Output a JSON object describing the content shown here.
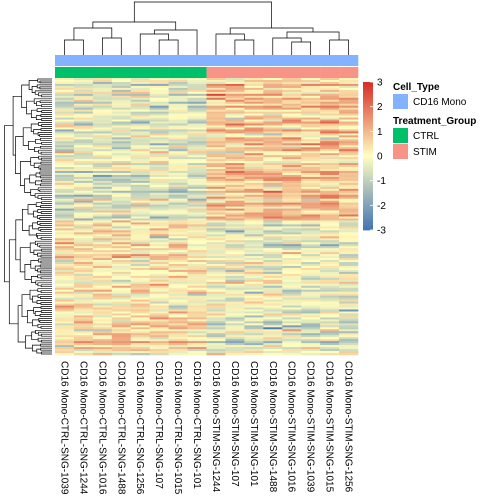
{
  "chart_data": {
    "type": "heatmap",
    "columns": [
      "CD16 Mono-CTRL-SNG-1039",
      "CD16 Mono-CTRL-SNG-1244",
      "CD16 Mono-CTRL-SNG-1016",
      "CD16 Mono-CTRL-SNG-1488",
      "CD16 Mono-CTRL-SNG-1256",
      "CD16 Mono-CTRL-SNG-107",
      "CD16 Mono-CTRL-SNG-1015",
      "CD16 Mono-CTRL-SNG-101",
      "CD16 Mono-STIM-SNG-1244",
      "CD16 Mono-STIM-SNG-107",
      "CD16 Mono-STIM-SNG-101",
      "CD16 Mono-STIM-SNG-1488",
      "CD16 Mono-STIM-SNG-1016",
      "CD16 Mono-STIM-SNG-1039",
      "CD16 Mono-STIM-SNG-1015",
      "CD16 Mono-STIM-SNG-1256"
    ],
    "cell_type": [
      "CD16 Mono",
      "CD16 Mono",
      "CD16 Mono",
      "CD16 Mono",
      "CD16 Mono",
      "CD16 Mono",
      "CD16 Mono",
      "CD16 Mono",
      "CD16 Mono",
      "CD16 Mono",
      "CD16 Mono",
      "CD16 Mono",
      "CD16 Mono",
      "CD16 Mono",
      "CD16 Mono",
      "CD16 Mono"
    ],
    "treatment_group": [
      "CTRL",
      "CTRL",
      "CTRL",
      "CTRL",
      "CTRL",
      "CTRL",
      "CTRL",
      "CTRL",
      "STIM",
      "STIM",
      "STIM",
      "STIM",
      "STIM",
      "STIM",
      "STIM",
      "STIM"
    ],
    "row_count": 140,
    "row_pattern": {
      "ctrl_mean_top": -0.4,
      "stim_mean_top": 0.7,
      "ctrl_mean_bottom": 0.3,
      "stim_mean_bottom": -0.3
    },
    "color_scale": {
      "range": [
        -3,
        3
      ],
      "ticks": [
        "3",
        "2",
        "1",
        "0",
        "-1",
        "-2",
        "-3"
      ],
      "tick_values": [
        3,
        2,
        1,
        0,
        -1,
        -2,
        -3
      ],
      "low_color": "#4575b4",
      "mid_color": "#ffffbf",
      "high_color": "#d73027"
    },
    "legend": {
      "placement": "right",
      "groups": [
        {
          "title": "Cell_Type",
          "items": [
            {
              "label": "CD16 Mono",
              "color": "#83b2ff"
            }
          ]
        },
        {
          "title": "Treatment_Group",
          "items": [
            {
              "label": "CTRL",
              "color": "#00c16a"
            },
            {
              "label": "STIM",
              "color": "#f89487"
            }
          ]
        }
      ]
    },
    "dendrogram": {
      "rows": true,
      "columns": true
    }
  }
}
